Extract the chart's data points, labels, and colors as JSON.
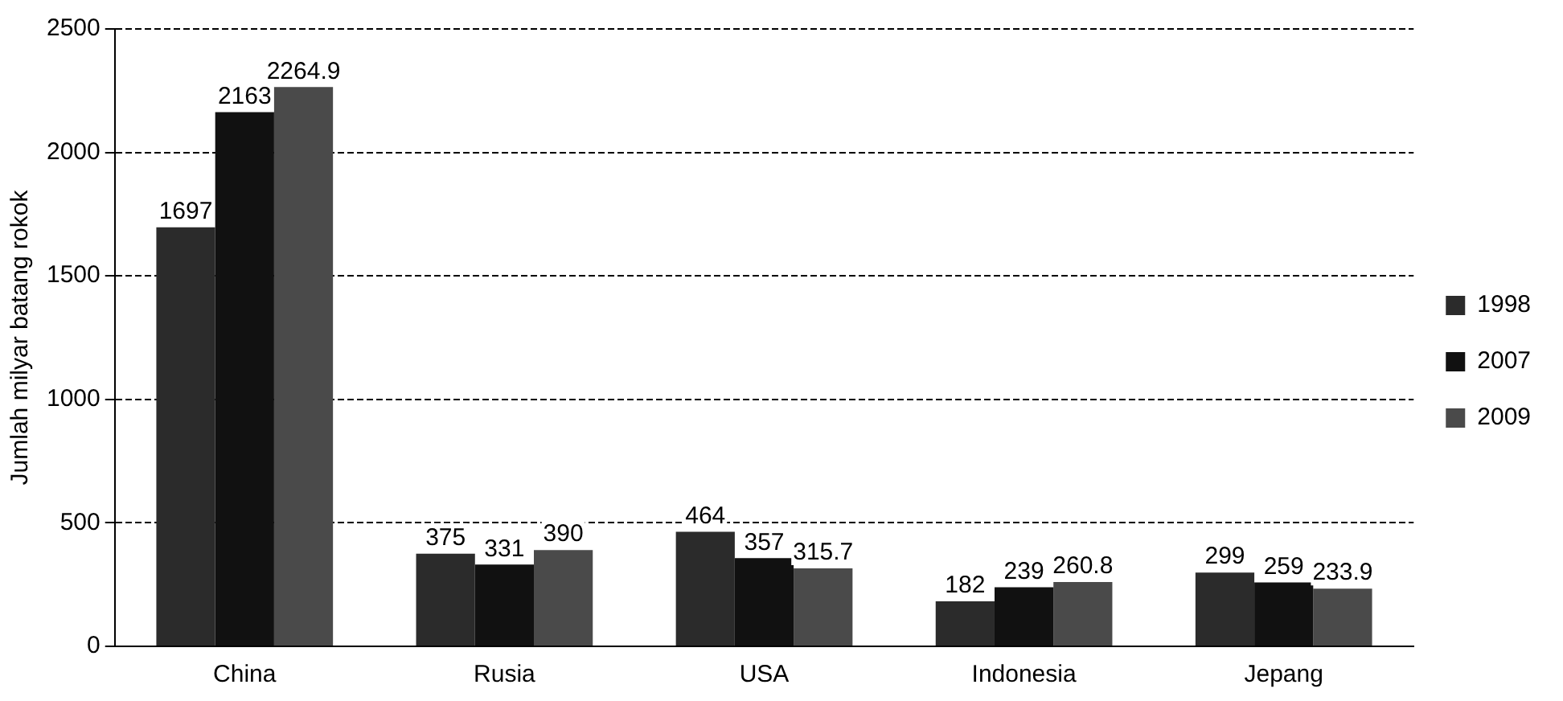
{
  "chart_data": {
    "type": "bar",
    "ylabel": "Jumlah milyar batang rokok",
    "categories": [
      "China",
      "Rusia",
      "USA",
      "Indonesia",
      "Jepang"
    ],
    "series": [
      {
        "name": "1998",
        "color": "#2b2b2b",
        "values": [
          1697,
          375,
          464,
          182,
          299
        ]
      },
      {
        "name": "2007",
        "color": "#111111",
        "values": [
          2163,
          331,
          357,
          239,
          259
        ]
      },
      {
        "name": "2009",
        "color": "#4a4a4a",
        "values": [
          2264.9,
          390,
          315.7,
          260.8,
          233.9
        ]
      }
    ],
    "ylim": [
      0,
      2500
    ],
    "yticks": [
      0,
      500,
      1000,
      1500,
      2000,
      2500
    ],
    "grid": "y",
    "legend": "right",
    "data_labels": true
  }
}
